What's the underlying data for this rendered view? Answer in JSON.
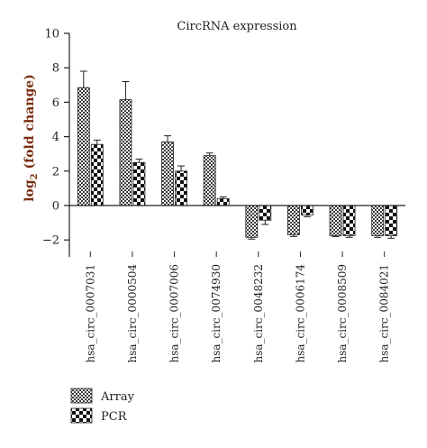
{
  "chart_data": {
    "type": "bar",
    "title": "CircRNA expression",
    "ylabel_main": "log",
    "ylabel_sub": "2",
    "ylabel_rest": " (fold change)",
    "xlabel": "",
    "ylim": [
      -3,
      10
    ],
    "yticks": [
      -2,
      0,
      2,
      4,
      6,
      8,
      10
    ],
    "ytick_labels": [
      "−2",
      "0",
      "2",
      "4",
      "6",
      "8",
      "10"
    ],
    "categories": [
      "hsa_circ_0007031",
      "hsa_circ_0000504",
      "hsa_circ_0007006",
      "hsa_circ_0074930",
      "hsa_circ_0048232",
      "hsa_circ_0006174",
      "hsa_circ_0008509",
      "hsa_circ_0084021"
    ],
    "series": [
      {
        "name": "Array",
        "pattern": "checker-fine",
        "values": [
          6.85,
          6.15,
          3.7,
          2.9,
          -1.85,
          -1.7,
          -1.75,
          -1.75
        ],
        "errors": [
          0.95,
          1.05,
          0.35,
          0.15,
          0.1,
          0.1,
          0.05,
          0.1
        ]
      },
      {
        "name": "PCR",
        "pattern": "checker-coarse",
        "values": [
          3.55,
          2.5,
          2.0,
          0.4,
          -0.85,
          -0.55,
          -1.75,
          -1.75
        ],
        "errors": [
          0.25,
          0.2,
          0.3,
          0.1,
          0.25,
          0.1,
          0.1,
          0.15
        ]
      }
    ],
    "legend_position": "bottom-left",
    "grid": false
  }
}
